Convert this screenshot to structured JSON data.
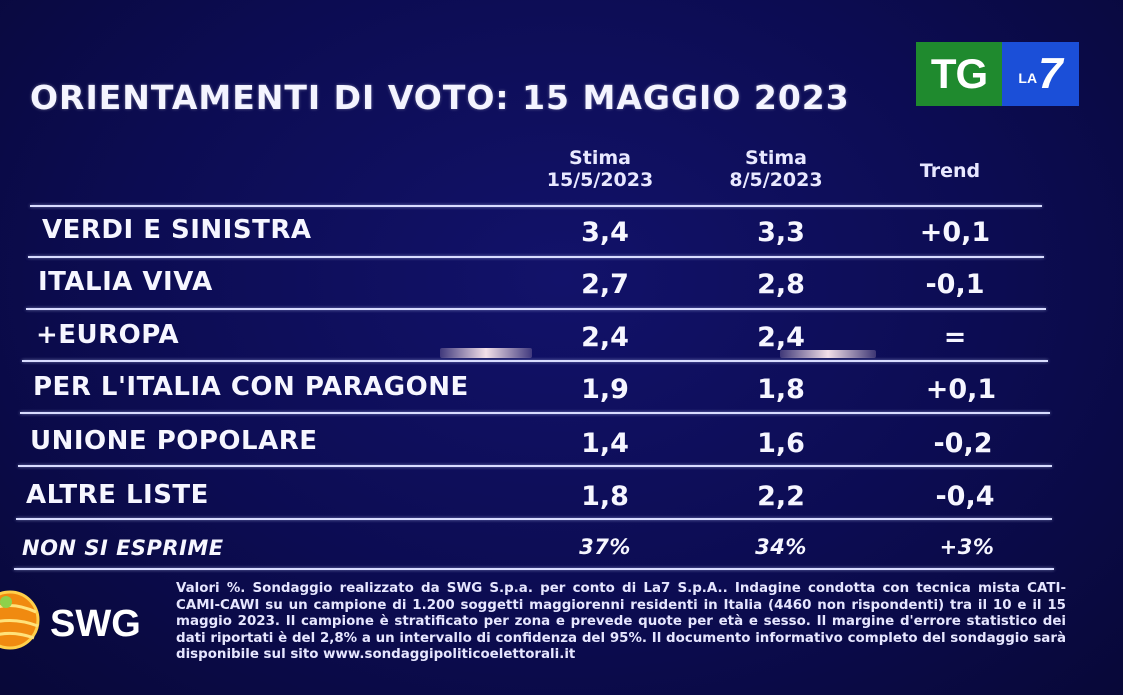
{
  "title": "ORIENTAMENTI DI VOTO: 15 MAGGIO 2023",
  "logo": {
    "tg": "TG",
    "la": "LA",
    "seven": "7"
  },
  "headers": {
    "col1_line1": "Stima",
    "col1_line2": "15/5/2023",
    "col2_line1": "Stima",
    "col2_line2": "8/5/2023",
    "trend": "Trend"
  },
  "rows": [
    {
      "label": "VERDI E SINISTRA",
      "stima_15": "3,4",
      "stima_8": "3,3",
      "trend": "+0,1"
    },
    {
      "label": "ITALIA VIVA",
      "stima_15": "2,7",
      "stima_8": "2,8",
      "trend": "-0,1"
    },
    {
      "label": "+EUROPA",
      "stima_15": "2,4",
      "stima_8": "2,4",
      "trend": "="
    },
    {
      "label": "PER L'ITALIA CON PARAGONE",
      "stima_15": "1,9",
      "stima_8": "1,8",
      "trend": "+0,1"
    },
    {
      "label": "UNIONE POPOLARE",
      "stima_15": "1,4",
      "stima_8": "1,6",
      "trend": "-0,2"
    },
    {
      "label": "ALTRE LISTE",
      "stima_15": "1,8",
      "stima_8": "2,2",
      "trend": "-0,4"
    }
  ],
  "non_si_esprime": {
    "label": "NON SI ESPRIME",
    "stima_15": "37%",
    "stima_8": "34%",
    "trend": "+3%"
  },
  "footer": {
    "brand": "SWG",
    "note": "Valori %. Sondaggio realizzato da SWG S.p.a. per conto di La7 S.p.A.. Indagine condotta con tecnica mista CATI-CAMI-CAWI su un campione di 1.200 soggetti maggiorenni residenti in Italia (4460 non rispondenti) tra il 10 e il 15 maggio 2023. Il campione è stratificato per zona e prevede quote per età e sesso. Il margine d'errore statistico dei dati riportati è del 2,8% a un intervallo di confidenza del 95%. Il documento informativo completo del sondaggio sarà disponibile sul sito www.sondaggipoliticoelettorali.it"
  },
  "colors": {
    "background": "#0c0c52",
    "text": "#f6f6ff",
    "tg_green": "#1f8a2e",
    "la7_blue": "#1b4fd8",
    "rule": "#d8dcff"
  }
}
